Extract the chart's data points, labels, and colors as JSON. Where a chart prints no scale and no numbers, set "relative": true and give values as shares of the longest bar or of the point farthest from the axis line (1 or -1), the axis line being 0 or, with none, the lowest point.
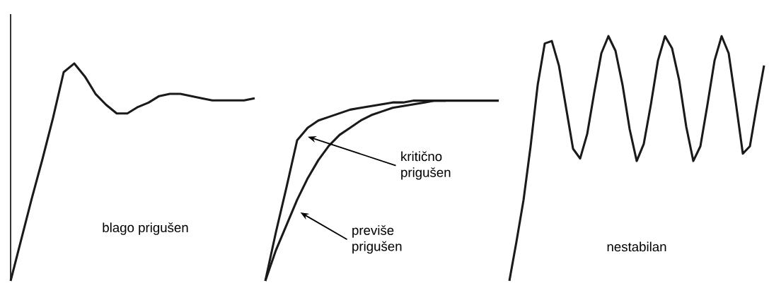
{
  "chart_data": [
    {
      "type": "line",
      "relative": true,
      "color": "#1a1a1a",
      "categories": [
        null,
        null,
        null,
        null,
        null,
        null,
        null,
        null,
        null,
        null,
        null,
        null,
        null,
        null,
        null,
        null,
        null,
        null,
        null,
        null,
        null,
        null,
        null,
        null
      ],
      "values": [
        0,
        0.19,
        0.38,
        0.56,
        0.75,
        0.96,
        1,
        0.94,
        0.86,
        0.81,
        0.77,
        0.77,
        0.8,
        0.82,
        0.85,
        0.86,
        0.86,
        0.85,
        0.84,
        0.83,
        0.83,
        0.83,
        0.83,
        0.84
      ],
      "annotations": [
        "blago prigušen"
      ]
    },
    {
      "type": "line",
      "relative": true,
      "categories": [
        null,
        null,
        null,
        null,
        null,
        null,
        null,
        null,
        null,
        null,
        null,
        null,
        null,
        null,
        null,
        null,
        null,
        null,
        null,
        null,
        null,
        null,
        null
      ],
      "series": [
        {
          "color": "#1a1a1a",
          "values": [
            0,
            0.27,
            0.52,
            0.78,
            0.85,
            0.89,
            0.91,
            0.93,
            0.95,
            0.96,
            0.97,
            0.98,
            0.99,
            0.99,
            1,
            1,
            1,
            1,
            1,
            1,
            1,
            1,
            1
          ]
        },
        {
          "color": "#1a1a1a",
          "values": [
            0,
            0.17,
            0.31,
            0.45,
            0.57,
            0.67,
            0.75,
            0.81,
            0.85,
            0.89,
            0.92,
            0.94,
            0.96,
            0.97,
            0.98,
            0.99,
            1,
            1,
            null,
            null,
            null,
            null,
            null
          ]
        }
      ],
      "annotations": [
        "kritično prigušen",
        "previše prigušen"
      ]
    },
    {
      "type": "line",
      "relative": true,
      "color": "#1a1a1a",
      "categories": [
        null,
        null,
        null,
        null,
        null,
        null,
        null,
        null,
        null,
        null,
        null,
        null,
        null,
        null,
        null,
        null,
        null,
        null,
        null,
        null,
        null,
        null,
        null,
        null,
        null,
        null,
        null,
        null,
        null,
        null,
        null,
        null,
        null,
        null,
        null,
        null,
        null
      ],
      "values": [
        0,
        0.16,
        0.33,
        0.55,
        0.8,
        0.97,
        0.98,
        0.88,
        0.71,
        0.54,
        0.5,
        0.6,
        0.77,
        0.93,
        1,
        0.94,
        0.8,
        0.62,
        0.49,
        0.56,
        0.72,
        0.9,
        1,
        0.95,
        0.82,
        0.63,
        0.49,
        0.55,
        0.72,
        0.9,
        1,
        0.93,
        0.73,
        0.52,
        0.55,
        0.72,
        0.88
      ],
      "annotations": [
        "nestabilan"
      ]
    }
  ]
}
